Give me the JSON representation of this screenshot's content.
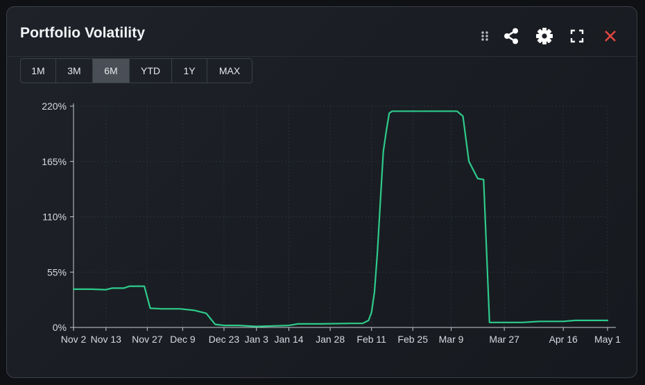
{
  "widget": {
    "title": "Portfolio Volatility",
    "icons": [
      "drag-handle-icon",
      "share-icon",
      "gear-icon",
      "fullscreen-icon",
      "close-icon"
    ],
    "accent_color": "#2ecb8b",
    "close_color": "#e5473f"
  },
  "range_selector": {
    "options": [
      "1M",
      "3M",
      "6M",
      "YTD",
      "1Y",
      "MAX"
    ],
    "selected": "6M"
  },
  "chart_data": {
    "type": "line",
    "title": "",
    "xlabel": "",
    "ylabel": "",
    "ylim": [
      0,
      220
    ],
    "y_ticks": [
      "0%",
      "55%",
      "110%",
      "165%",
      "220%"
    ],
    "x_ticks": [
      "Nov 2",
      "Nov 13",
      "Nov 27",
      "Dec 9",
      "Dec 23",
      "Jan 3",
      "Jan 14",
      "Jan 28",
      "Feb 11",
      "Feb 25",
      "Mar 9",
      "Mar 27",
      "Apr 16",
      "May 1"
    ],
    "grid": true,
    "series": [
      {
        "color": "#2ecb8b",
        "x": [
          "2023-11-02",
          "2023-11-08",
          "2023-11-13",
          "2023-11-15",
          "2023-11-19",
          "2023-11-21",
          "2023-11-26",
          "2023-11-28",
          "2023-12-02",
          "2023-12-08",
          "2023-12-13",
          "2023-12-17",
          "2023-12-20",
          "2023-12-23",
          "2023-12-28",
          "2024-01-03",
          "2024-01-09",
          "2024-01-14",
          "2024-01-17",
          "2024-01-25",
          "2024-02-04",
          "2024-02-08",
          "2024-02-10",
          "2024-02-11",
          "2024-02-12",
          "2024-02-13",
          "2024-02-14",
          "2024-02-15",
          "2024-02-16",
          "2024-02-17",
          "2024-02-18",
          "2024-03-11",
          "2024-03-13",
          "2024-03-15",
          "2024-03-18",
          "2024-03-20",
          "2024-03-22",
          "2024-04-02",
          "2024-04-08",
          "2024-04-16",
          "2024-04-20",
          "2024-05-04"
        ],
        "y": [
          38,
          38,
          37.5,
          39,
          39,
          41,
          41,
          19,
          18.5,
          18.5,
          17,
          14,
          3,
          2,
          2,
          1,
          1.5,
          2,
          3.5,
          3.5,
          4,
          4,
          7,
          15,
          35,
          75,
          125,
          175,
          195,
          213,
          215,
          215,
          210,
          165,
          148,
          147,
          5,
          5,
          6,
          6,
          7,
          7
        ]
      }
    ]
  }
}
